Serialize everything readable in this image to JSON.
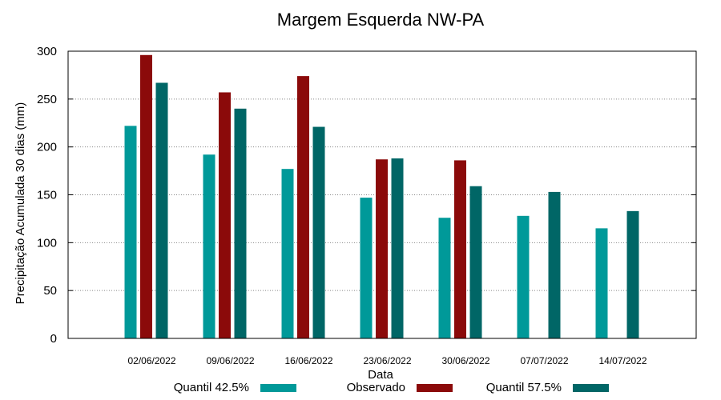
{
  "chart_data": {
    "type": "bar",
    "title": "Margem Esquerda NW-PA",
    "xlabel": "Data",
    "ylabel": "Precipitação Acumulada 30 dias (mm)",
    "ylim": [
      0,
      300
    ],
    "yticks": [
      0,
      50,
      100,
      150,
      200,
      250,
      300
    ],
    "grid": true,
    "legend_position": "bottom",
    "categories": [
      "02/06/2022",
      "09/06/2022",
      "16/06/2022",
      "23/06/2022",
      "30/06/2022",
      "07/07/2022",
      "14/07/2022"
    ],
    "series": [
      {
        "name": "Quantil 42.5%",
        "color": "#009999",
        "values": [
          222,
          192,
          177,
          147,
          126,
          128,
          115
        ]
      },
      {
        "name": "Observado",
        "color": "#8b0a0a",
        "values": [
          296,
          257,
          274,
          187,
          186,
          null,
          null
        ]
      },
      {
        "name": "Quantil 57.5%",
        "color": "#006666",
        "values": [
          267,
          240,
          221,
          188,
          159,
          153,
          133
        ]
      }
    ]
  }
}
